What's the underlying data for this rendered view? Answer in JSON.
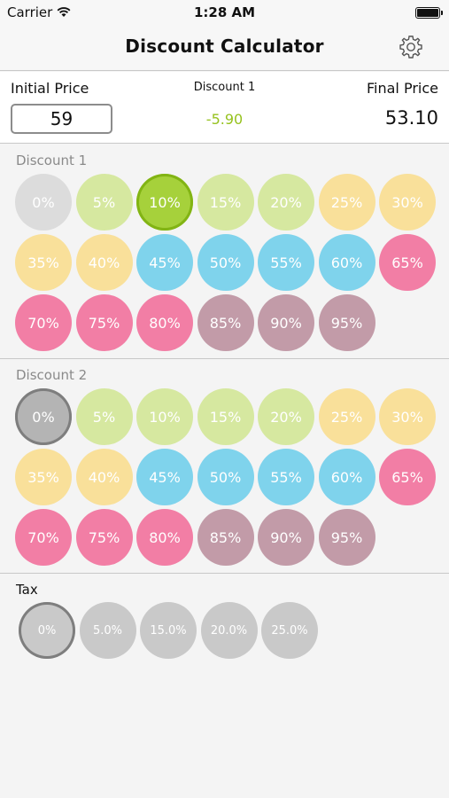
{
  "status_bar": {
    "carrier": "Carrier",
    "time": "1:28 AM",
    "wifi_icon": "wifi-icon",
    "battery_icon": "battery-icon"
  },
  "nav": {
    "title": "Discount Calculator",
    "settings_icon": "gear-icon"
  },
  "summary": {
    "initial_price_label": "Initial Price",
    "initial_price_value": "59",
    "discount1_label": "Discount 1",
    "discount1_value": "-5.90",
    "final_price_label": "Final Price",
    "final_price_value": "53.10"
  },
  "discount1": {
    "title": "Discount 1",
    "selected": "10%",
    "options": [
      "0%",
      "5%",
      "10%",
      "15%",
      "20%",
      "25%",
      "30%",
      "35%",
      "40%",
      "45%",
      "50%",
      "55%",
      "60%",
      "65%",
      "70%",
      "75%",
      "80%",
      "85%",
      "90%",
      "95%"
    ]
  },
  "discount2": {
    "title": "Discount 2",
    "selected": "0%",
    "options": [
      "0%",
      "5%",
      "10%",
      "15%",
      "20%",
      "25%",
      "30%",
      "35%",
      "40%",
      "45%",
      "50%",
      "55%",
      "60%",
      "65%",
      "70%",
      "75%",
      "80%",
      "85%",
      "90%",
      "95%"
    ]
  },
  "tax": {
    "title": "Tax",
    "selected": "0%",
    "options": [
      "0%",
      "5.0%",
      "15.0%",
      "20.0%",
      "25.0%"
    ]
  },
  "colors": {
    "zero": "#dcdcdc",
    "zero_selected": "#b4b4b4",
    "green": "#d6e8a0",
    "green_selected": "#a6d13b",
    "yellow": "#f9e09a",
    "blue": "#7fd3ec",
    "pink": "#f27ea5",
    "mauve": "#c29ba8",
    "tax": "#c9c9c9",
    "accent_green": "#96c21e"
  }
}
